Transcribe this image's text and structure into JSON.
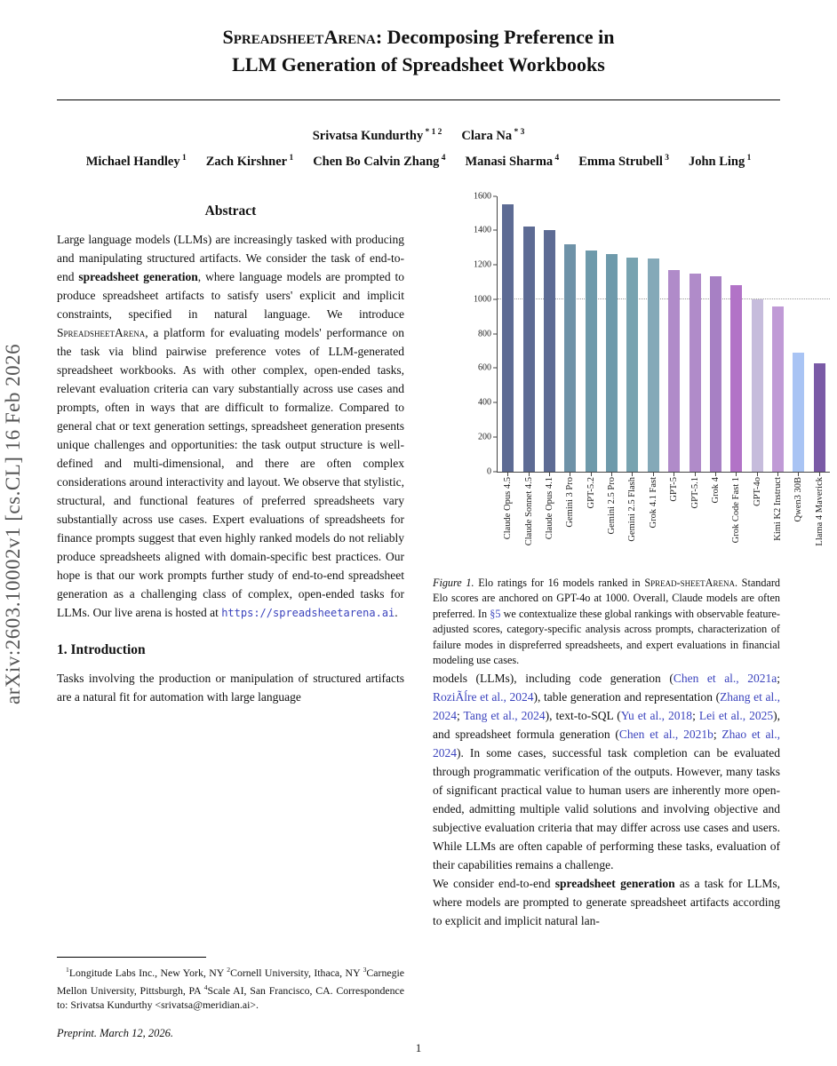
{
  "colors": {
    "link": "#3b43bd"
  },
  "arxiv_label": "arXiv:2603.10002v1  [cs.CL]  16 Feb 2026",
  "title": {
    "smallcaps": "SpreadsheetArena:",
    "rest": " Decomposing Preference in",
    "line2": "LLM Generation of Spreadsheet Workbooks"
  },
  "authors": {
    "line1": [
      {
        "name": "Srivatsa Kundurthy",
        "sup": "* 1 2"
      },
      {
        "name": "Clara Na",
        "sup": "* 3"
      }
    ],
    "line2": [
      {
        "name": "Michael Handley",
        "sup": "1"
      },
      {
        "name": "Zach Kirshner",
        "sup": "1"
      },
      {
        "name": "Chen Bo Calvin Zhang",
        "sup": "4"
      },
      {
        "name": "Manasi Sharma",
        "sup": "4"
      },
      {
        "name": "Emma Strubell",
        "sup": "3"
      },
      {
        "name": "John Ling",
        "sup": "1"
      }
    ]
  },
  "abstract": {
    "heading": "Abstract",
    "segments": [
      {
        "t": "Large language models (LLMs) are increasingly tasked with producing and manipulating structured artifacts. We consider the task of end-to-end "
      },
      {
        "t": "spreadsheet generation",
        "s": "b"
      },
      {
        "t": ", where language models are prompted to produce spreadsheet artifacts to satisfy users' explicit and implicit constraints, specified in natural language. We introduce "
      },
      {
        "t": "SpreadsheetArena",
        "s": "sc"
      },
      {
        "t": ", a platform for evaluating models' performance on the task via blind pairwise preference votes of LLM-generated spreadsheet workbooks. As with other complex, open-ended tasks, relevant evaluation criteria can vary substantially across use cases and prompts, often in ways that are difficult to formalize. Compared to general chat or text generation settings, spreadsheet generation presents unique challenges and opportunities: the task output structure is well-defined and multi-dimensional, and there are often complex considerations around interactivity and layout. We observe that stylistic, structural, and functional features of preferred spreadsheets vary substantially across use cases. Expert evaluations of spreadsheets for finance prompts suggest that even highly ranked models do not reliably produce spreadsheets aligned with domain-specific best practices. Our hope is that our work prompts further study of end-to-end spreadsheet generation as a challenging class of complex, open-ended tasks for LLMs. Our live arena is hosted at "
      },
      {
        "t": "https://spreadsheetarena.ai",
        "s": "mono",
        "n": "arena-url-link"
      },
      {
        "t": "."
      }
    ]
  },
  "intro": {
    "heading": "1. Introduction",
    "segments": [
      {
        "t": "Tasks involving the production or manipulation of structured artifacts are a natural fit for automation with large language"
      }
    ]
  },
  "footnote": {
    "segments": [
      {
        "t": "1",
        "s": "sup"
      },
      {
        "t": "Longitude Labs Inc., New York, NY "
      },
      {
        "t": "2",
        "s": "sup"
      },
      {
        "t": "Cornell University, Ithaca, NY "
      },
      {
        "t": "3",
        "s": "sup"
      },
      {
        "t": "Carnegie Mellon University, Pittsburgh, PA "
      },
      {
        "t": "4",
        "s": "sup"
      },
      {
        "t": "Scale AI, San Francisco, CA. Correspondence to: Srivatsa Kundurthy <srivatsa@meridian.ai>."
      }
    ]
  },
  "preprint": "Preprint. March 12, 2026.",
  "figure": {
    "caption": [
      {
        "t": "Figure 1.",
        "s": "i"
      },
      {
        "t": "  Elo ratings for 16 models ranked in "
      },
      {
        "t": "Spread-sheetArena",
        "s": "sc"
      },
      {
        "t": ". Standard Elo scores are anchored on GPT-4o at 1000. Overall, Claude models are often preferred. In "
      },
      {
        "t": "§5",
        "s": "link",
        "n": "section-5-link"
      },
      {
        "t": " we contextualize these global rankings with observable feature-adjusted scores, category-specific analysis across prompts, characterization of failure modes in dispreferred spreadsheets, and expert evaluations in financial modeling use cases."
      }
    ]
  },
  "body": {
    "p1": [
      {
        "t": "models (LLMs), including code generation ("
      },
      {
        "t": "Chen et al., 2021a",
        "s": "link",
        "n": "citation-chen-2021a"
      },
      {
        "t": "; "
      },
      {
        "t": "RoziÃĺre et al., 2024",
        "s": "link",
        "n": "citation-roziere-2024"
      },
      {
        "t": "), table generation and representation ("
      },
      {
        "t": "Zhang et al., 2024",
        "s": "link",
        "n": "citation-zhang-2024"
      },
      {
        "t": "; "
      },
      {
        "t": "Tang et al., 2024",
        "s": "link",
        "n": "citation-tang-2024"
      },
      {
        "t": "), text-to-SQL ("
      },
      {
        "t": "Yu et al., 2018",
        "s": "link",
        "n": "citation-yu-2018"
      },
      {
        "t": "; "
      },
      {
        "t": "Lei et al., 2025",
        "s": "link",
        "n": "citation-lei-2025"
      },
      {
        "t": "), and spreadsheet formula generation ("
      },
      {
        "t": "Chen et al., 2021b",
        "s": "link",
        "n": "citation-chen-2021b"
      },
      {
        "t": "; "
      },
      {
        "t": "Zhao et al., 2024",
        "s": "link",
        "n": "citation-zhao-2024"
      },
      {
        "t": "). In some cases, successful task completion can be evaluated through programmatic verification of the outputs. However, many tasks of significant practical value to human users are inherently more open-ended, admitting multiple valid solutions and involving objective and subjective evaluation criteria that may differ across use cases and users. While LLMs are often capable of performing these tasks, evaluation of their capabilities remains a challenge."
      }
    ],
    "p2": [
      {
        "t": "We consider end-to-end "
      },
      {
        "t": "spreadsheet generation",
        "s": "b"
      },
      {
        "t": " as a task for LLMs, where models are prompted to generate spreadsheet artifacts according to explicit and implicit natural lan-"
      }
    ]
  },
  "chart_data": {
    "type": "bar",
    "title": "",
    "xlabel": "",
    "ylabel": "",
    "categories": [
      "Claude Opus 4.5",
      "Claude Sonnet 4.5",
      "Claude Opus 4.1",
      "Gemini 3 Pro",
      "GPT-5.2",
      "Gemini 2.5 Pro",
      "Gemini 2.5 Flash",
      "Grok 4.1 Fast",
      "GPT-5",
      "GPT-5.1",
      "Grok 4",
      "Grok Code Fast 1",
      "GPT-4o",
      "Kimi K2 Instruct",
      "Qwen3 30B",
      "Llama 4 Maverick"
    ],
    "values": [
      1550,
      1425,
      1400,
      1320,
      1285,
      1265,
      1240,
      1235,
      1170,
      1150,
      1135,
      1080,
      1000,
      960,
      690,
      630
    ],
    "colors": [
      "#5d6b94",
      "#5d6b94",
      "#5d6b94",
      "#6e92a8",
      "#6e9aab",
      "#6e9aab",
      "#78a3b0",
      "#84a9b8",
      "#b08bc9",
      "#b08bc9",
      "#a780c4",
      "#b273c7",
      "#c6bcdc",
      "#c09ad6",
      "#a9c4f4",
      "#7a5aa6"
    ],
    "ylim": [
      0,
      1600
    ],
    "yticks": [
      0,
      200,
      400,
      600,
      800,
      1000,
      1200,
      1400,
      1600
    ],
    "reference_line": 1000,
    "grid": false,
    "legend": null
  },
  "page_number": "1"
}
